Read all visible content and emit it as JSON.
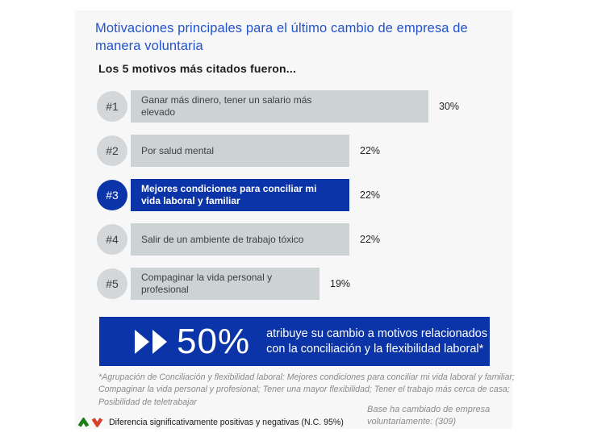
{
  "chart_data": {
    "type": "bar",
    "orientation": "horizontal",
    "title": "Motivaciones principales para el último cambio de empresa de manera voluntaria",
    "subtitle": "Los 5 motivos más citados fueron...",
    "ranks": [
      "#1",
      "#2",
      "#3",
      "#4",
      "#5"
    ],
    "categories": [
      "Ganar más dinero, tener un salario más elevado",
      "Por salud mental",
      "Mejores condiciones para conciliar mi vida laboral y familiar",
      "Salir de un ambiente de trabajo tóxico",
      "Compaginar la vida personal y profesional"
    ],
    "values": [
      30,
      22,
      22,
      22,
      19
    ],
    "display_values": [
      "30%",
      "22%",
      "22%",
      "22%",
      "19%"
    ],
    "value_suffix": "%",
    "highlighted_index": 2,
    "xlim": [
      0,
      32
    ],
    "bar_color": "#cdd2d5",
    "highlight_color": "#0b34a8"
  },
  "banner": {
    "stat": "50%",
    "text": "atribuye su cambio a motivos relacionados con la conciliación y la flexibilidad laboral*",
    "icon": "fast-forward-icon"
  },
  "footnote": "*Agrupación de Conciliación y flexibilidad laboral: Mejores condiciones para conciliar mi vida laboral y familiar; Compaginar la vida personal y profesional; Tener una mayor flexibilidad; Tener el trabajo más cerca de casa; Posibilidad de teletrabajar",
  "legend": {
    "text": "Diferencia significativamente positivas y negativas (N.C. 95%)",
    "up_arrow_color": "#1e7e1e",
    "down_arrow_color": "#d9402c"
  },
  "base_note": "Base ha cambiado de empresa voluntariamente:  (309)",
  "colors": {
    "title_blue": "#2353cd",
    "dark_blue": "#0b34a8",
    "card_bg": "#f7f7f8",
    "bar_gray": "#cdd2d5",
    "badge_gray": "#d3d7da"
  }
}
